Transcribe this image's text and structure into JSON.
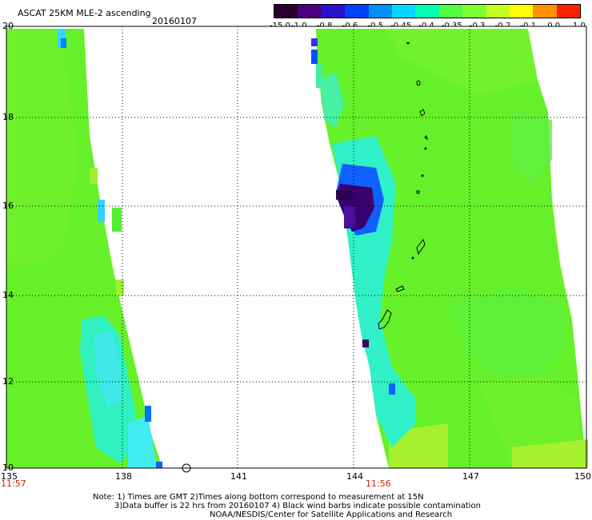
{
  "header": {
    "title": "ASCAT 25KM MLE-2 ascending",
    "date": "20160107"
  },
  "colorbar": {
    "labels": [
      "-15.0",
      "-1.0",
      "-0.8",
      "-0.6",
      "-0.5",
      "-0.45",
      "-0.4",
      "-0.35",
      "-0.3",
      "-0.2",
      "-0.1",
      "0.0",
      "1.0"
    ],
    "colors": [
      "#2a0030",
      "#4a0080",
      "#2a10c8",
      "#0040ff",
      "#0090ff",
      "#00d8ff",
      "#00ffb0",
      "#50ff40",
      "#80ff30",
      "#c0ff20",
      "#ffff00",
      "#ff9000",
      "#ff2000"
    ]
  },
  "map": {
    "lon_range": [
      135,
      150
    ],
    "lat_range": [
      10,
      20
    ],
    "x_ticks": [
      "135",
      "138",
      "141",
      "144",
      "147",
      "150"
    ],
    "y_ticks": [
      "20",
      "18",
      "16",
      "14",
      "12",
      "10"
    ],
    "gridlines": true
  },
  "times": {
    "left": "11:57",
    "right": "11:56"
  },
  "notes": {
    "line1": "Note: 1) Times are GMT 2)Times along bottom correspond to measurement at 15N",
    "line2": "3)Data buffer is 22 hrs from 20160107 4) Black wind barbs indicate possible contamination",
    "line3": "NOAA/NESDIS/Center for Satellite Applications and Research"
  },
  "palette": {
    "green": "#66f02a",
    "light_green": "#9cf035",
    "cyan": "#20f0d0",
    "aqua": "#30e8ff",
    "blue": "#1060ff",
    "dark_purple": "#3a0060"
  }
}
